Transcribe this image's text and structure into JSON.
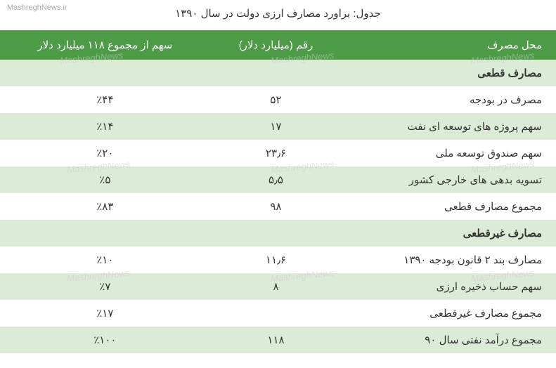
{
  "title": "جدول: براورد مصارف ارزی دولت در سال ۱۳۹۰",
  "source": "MashreghNews.ir",
  "watermark": "MashreghNews",
  "headers": {
    "col1": "محل مصرف",
    "col2": "رقم (میلیارد دلار)",
    "col3": "سهم از مجموع ۱۱۸ میلیارد دلار"
  },
  "rows": [
    {
      "label": "مصارف قطعی",
      "value": "",
      "share": "",
      "type": "section",
      "bg": "light"
    },
    {
      "label": "مصرف در بودجه",
      "value": "۵۲",
      "share": "٪۴۴",
      "type": "data",
      "bg": "white"
    },
    {
      "label": "سهم پروژه های توسعه ای نفت",
      "value": "۱۷",
      "share": "٪۱۴",
      "type": "data",
      "bg": "light"
    },
    {
      "label": "سهم صندوق توسعه ملی",
      "value": "۲۳٫۶",
      "share": "٪۲۰",
      "type": "data",
      "bg": "white"
    },
    {
      "label": "تسویه بدهی های خارجی کشور",
      "value": "۵٫۵",
      "share": "٪۵",
      "type": "data",
      "bg": "light"
    },
    {
      "label": "مجموع مصارف قطعی",
      "value": "۹۸",
      "share": "٪۸۳",
      "type": "data",
      "bg": "white"
    },
    {
      "label": "مصارف غیرقطعی",
      "value": "",
      "share": "",
      "type": "section",
      "bg": "light"
    },
    {
      "label": "مصارف بند ۲ قانون بودجه ۱۳۹۰",
      "value": "۱۱٫۶",
      "share": "٪۱۰",
      "type": "data",
      "bg": "white"
    },
    {
      "label": "سهم حساب ذخیره ارزی",
      "value": "۸",
      "share": "٪۷",
      "type": "data",
      "bg": "light"
    },
    {
      "label": "مجموع مصارف غیرقطعی",
      "value": "",
      "share": "٪۱۷",
      "type": "data",
      "bg": "white"
    },
    {
      "label": "مجموع درآمد نفتی سال ۹۰",
      "value": "۱۱۸",
      "share": "٪۱۰۰",
      "type": "data",
      "bg": "light"
    }
  ],
  "styling": {
    "header_bg": "#4d9b47",
    "header_text": "#ffffff",
    "row_light_bg": "#dcebd5",
    "row_white_bg": "#ffffff",
    "text_color": "#333333",
    "watermark_color": "#cccccc",
    "title_fontsize": 15,
    "cell_fontsize": 15
  }
}
